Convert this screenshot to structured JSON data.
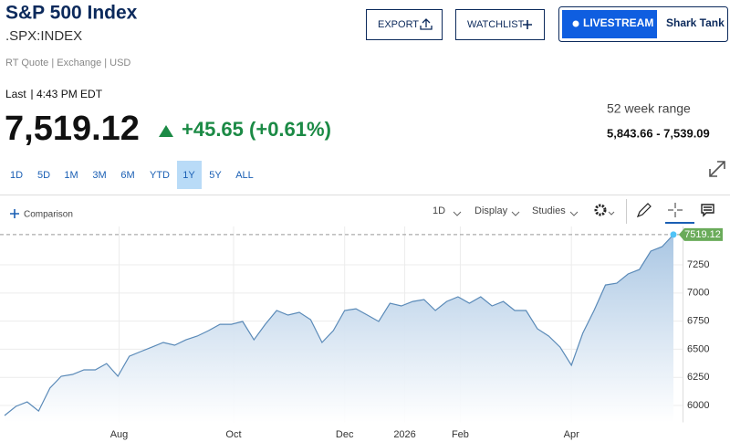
{
  "header": {
    "title": "S&P 500 Index",
    "symbol": ".SPX:INDEX",
    "quote_info": "RT Quote | Exchange | USD"
  },
  "buttons": {
    "export": "EXPORT",
    "watchlist": "WATCHLIST",
    "livestream": "LIVESTREAM",
    "shark_tank": "Shark Tank"
  },
  "quote": {
    "last_label": "Last",
    "time": "4:43 PM EDT",
    "price": "7,519.12",
    "change": "+45.65 (+0.61%)",
    "range_label": "52 week range",
    "range": "5,843.66 - 7,539.09"
  },
  "ranges": [
    "1D",
    "5D",
    "1M",
    "3M",
    "6M",
    "YTD",
    "1Y",
    "5Y",
    "ALL"
  ],
  "selected_range": "1Y",
  "toolbar": {
    "comparison": "Comparison",
    "interval": "1D",
    "display": "Display",
    "studies": "Studies"
  },
  "chart_data": {
    "type": "line",
    "color": "#5a8ab8",
    "grid": true,
    "values": [
      5911,
      5992,
      6032,
      5951,
      6154,
      6260,
      6276,
      6317,
      6317,
      6373,
      6260,
      6438,
      6479,
      6519,
      6560,
      6536,
      6584,
      6617,
      6666,
      6722,
      6722,
      6747,
      6584,
      6722,
      6844,
      6804,
      6828,
      6763,
      6560,
      6666,
      6844,
      6860,
      6804,
      6747,
      6909,
      6885,
      6925,
      6942,
      6844,
      6925,
      6966,
      6909,
      6966,
      6885,
      6925,
      6844,
      6844,
      6682,
      6617,
      6519,
      6357,
      6641,
      6844,
      7071,
      7087,
      7169,
      7209,
      7372,
      7412,
      7519.12
    ],
    "xlim": [
      0,
      59
    ],
    "xticks": [
      {
        "value": 10.1,
        "label": "Aug"
      },
      {
        "value": 20.2,
        "label": "Oct"
      },
      {
        "value": 30.0,
        "label": "Dec"
      },
      {
        "value": 35.3,
        "label": "2026"
      },
      {
        "value": 40.2,
        "label": "Feb"
      },
      {
        "value": 50.0,
        "label": "Apr"
      }
    ],
    "ylim": [
      5850,
      7600
    ],
    "yticks": [
      6000,
      6250,
      6500,
      6750,
      7000,
      7250
    ]
  }
}
